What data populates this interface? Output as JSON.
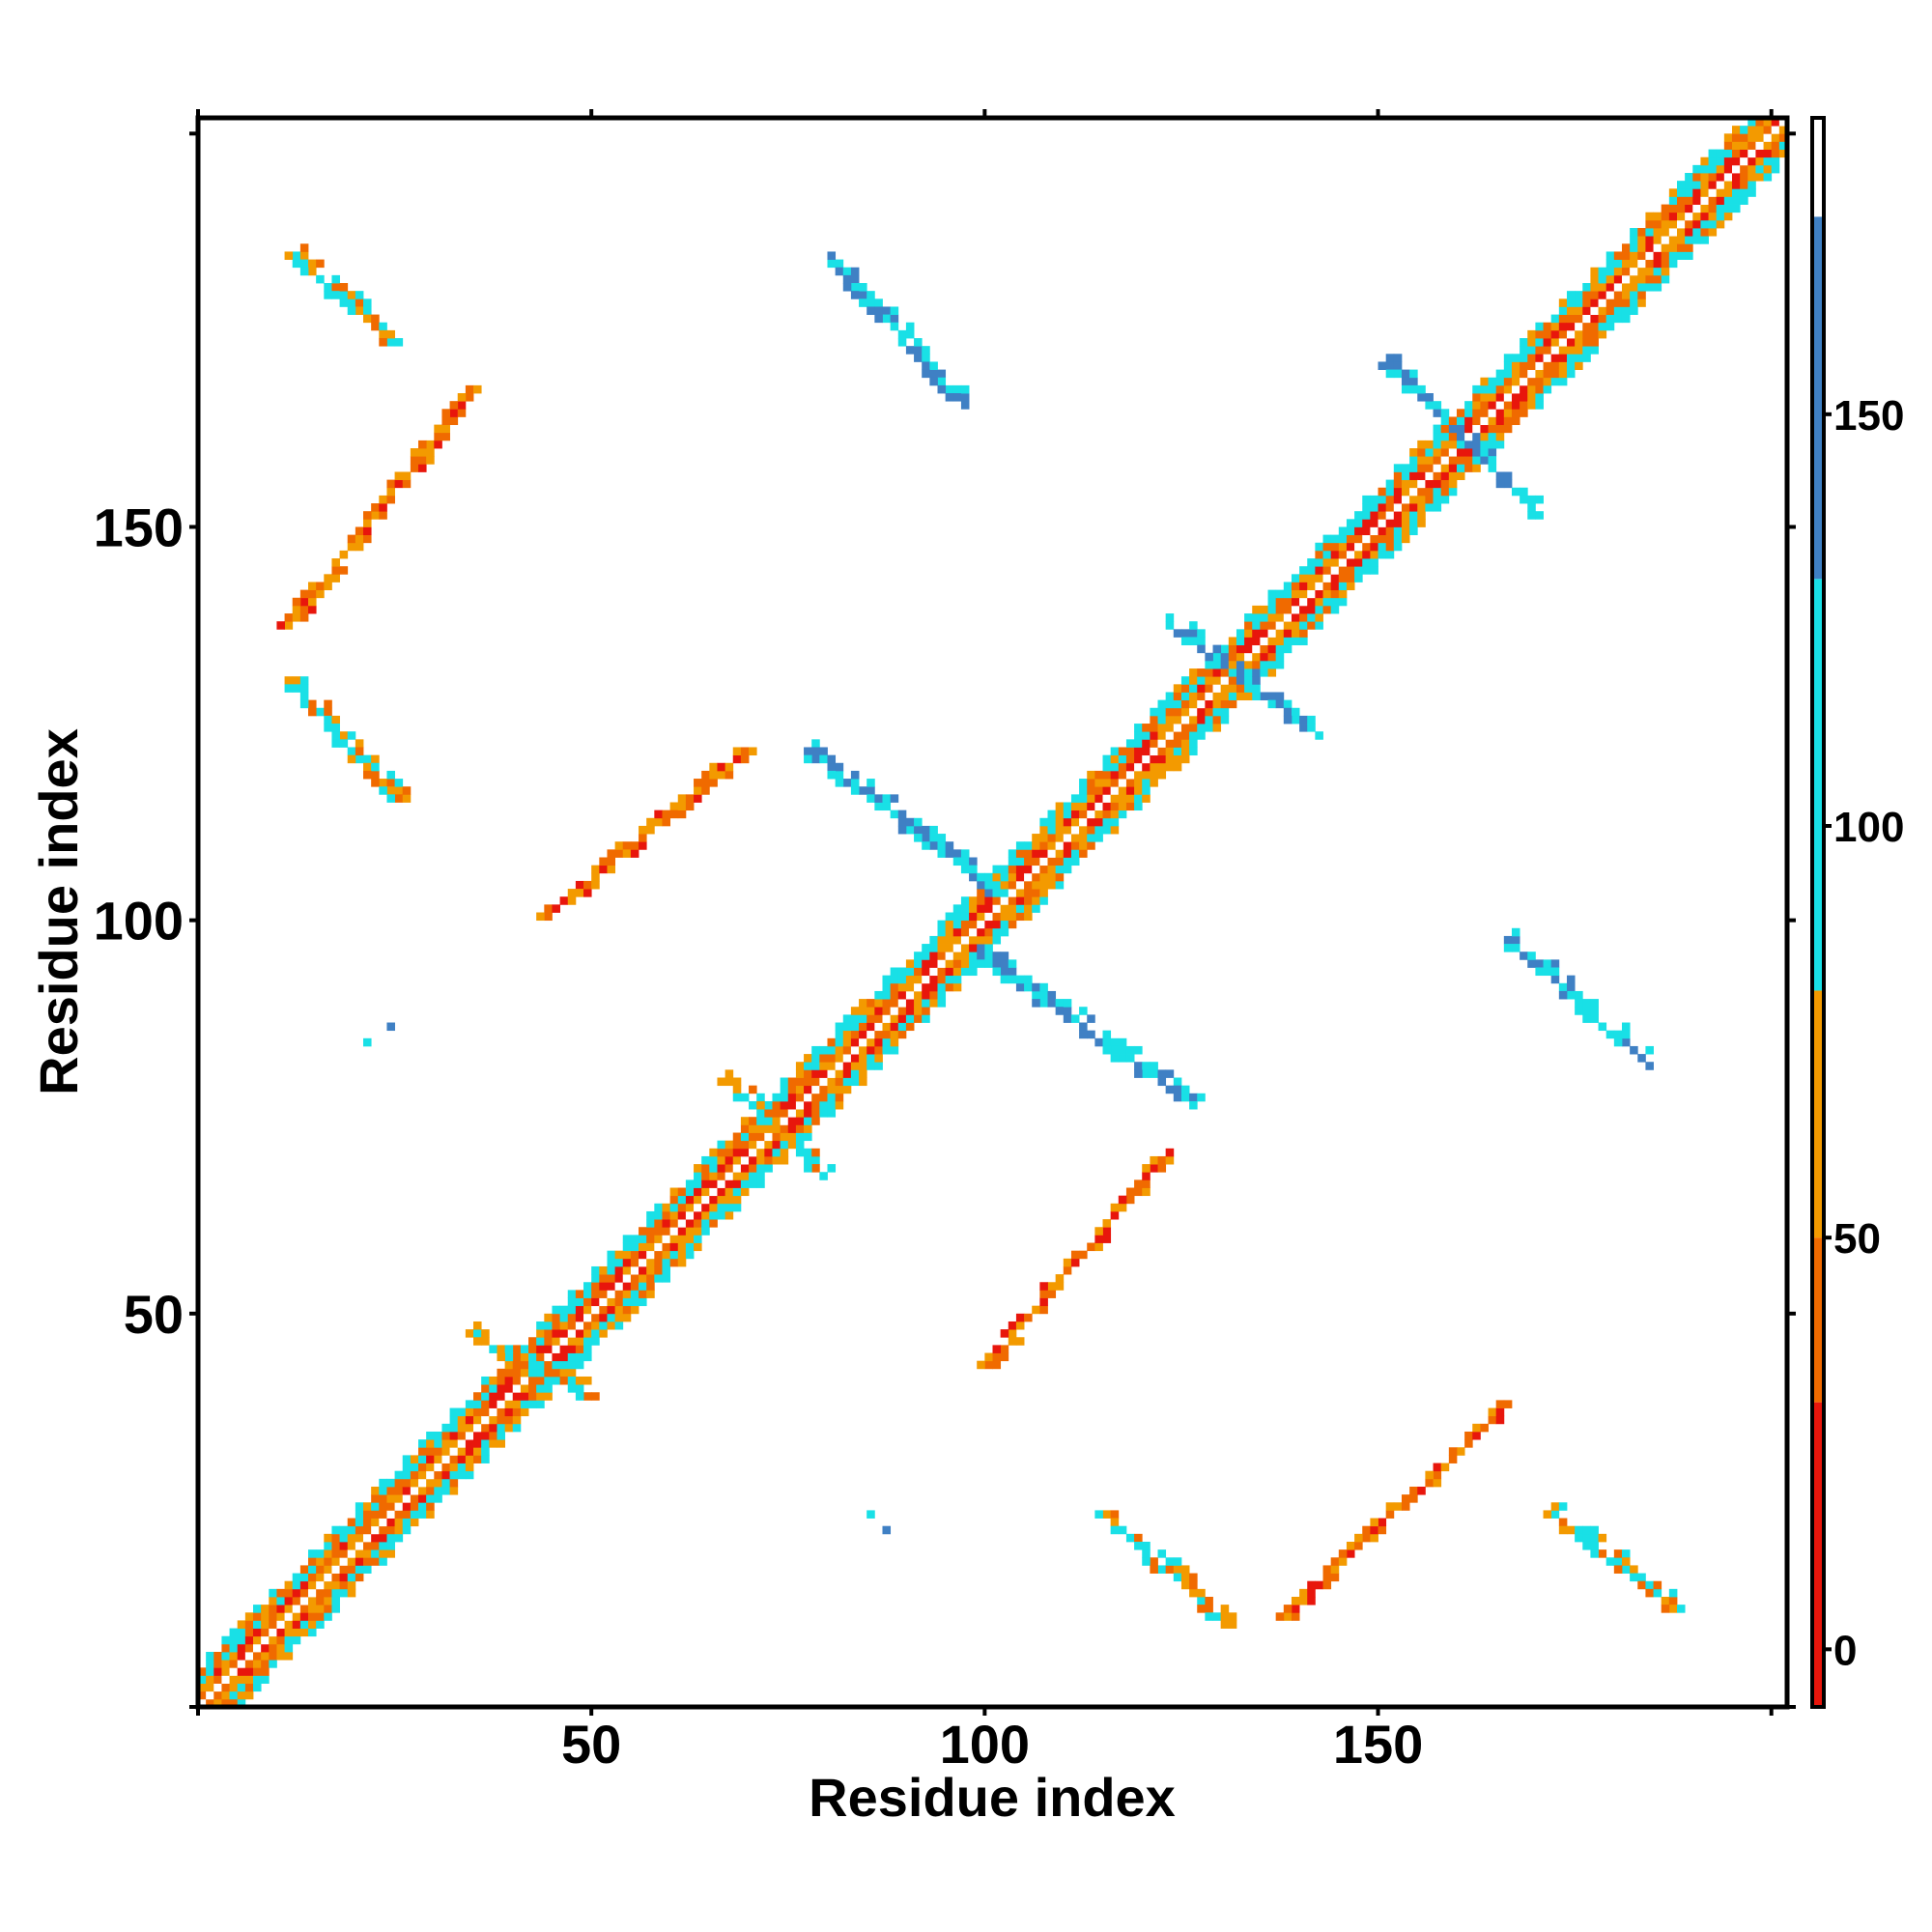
{
  "chart_data": {
    "type": "heatmap",
    "title": "",
    "xlabel": "Residue index",
    "ylabel": "Residue index",
    "xlim": [
      0,
      202
    ],
    "ylim": [
      0,
      202
    ],
    "x_ticks": [
      50,
      100,
      150
    ],
    "y_ticks": [
      50,
      100,
      150
    ],
    "colorbar": {
      "range": [
        -7,
        186
      ],
      "ticks": [
        0,
        50,
        100,
        150
      ],
      "bands": [
        {
          "from": -7,
          "to": 30,
          "color": "#e8160c"
        },
        {
          "from": 30,
          "to": 50,
          "color": "#f06a00"
        },
        {
          "from": 50,
          "to": 80,
          "color": "#f39a00"
        },
        {
          "from": 80,
          "to": 130,
          "color": "#19e0e6"
        },
        {
          "from": 130,
          "to": 174,
          "color": "#3f80c4"
        },
        {
          "from": 174,
          "to": 186,
          "color": "#ffffff"
        }
      ]
    },
    "grid": false,
    "legend": "colorbar-right",
    "diagonal": {
      "from": 1,
      "to": 202,
      "band_half_width": 5
    },
    "contact_segments": [
      {
        "from": [
          13,
          185
        ],
        "to": [
          25,
          174
        ],
        "level": 90
      },
      {
        "from": [
          12,
          138
        ],
        "to": [
          35,
          167
        ],
        "level": 50
      },
      {
        "from": [
          12,
          131
        ],
        "to": [
          26,
          116
        ],
        "level": 90
      },
      {
        "from": [
          45,
          101
        ],
        "to": [
          70,
          122
        ],
        "level": 50
      },
      {
        "from": [
          78,
          122
        ],
        "to": [
          102,
          104
        ],
        "level": 140
      },
      {
        "from": [
          81,
          184
        ],
        "to": [
          98,
          166
        ],
        "level": 140
      },
      {
        "from": [
          100,
          96
        ],
        "to": [
          127,
          77
        ],
        "level": 140
      },
      {
        "from": [
          101,
          44
        ],
        "to": [
          123,
          70
        ],
        "level": 50
      },
      {
        "from": [
          116,
          25
        ],
        "to": [
          131,
          11
        ],
        "level": 90
      },
      {
        "from": [
          139,
          12
        ],
        "to": [
          167,
          39
        ],
        "level": 50
      },
      {
        "from": [
          167,
          98
        ],
        "to": [
          185,
          82
        ],
        "level": 140
      },
      {
        "from": [
          173,
          25
        ],
        "to": [
          188,
          13
        ],
        "level": 90
      },
      {
        "from": [
          35,
          48
        ],
        "to": [
          50,
          40
        ],
        "level": 90
      },
      {
        "from": [
          68,
          80
        ],
        "to": [
          80,
          68
        ],
        "level": 90
      },
      {
        "from": [
          124,
          138
        ],
        "to": [
          143,
          124
        ],
        "level": 140
      },
      {
        "from": [
          152,
          171
        ],
        "to": [
          171,
          152
        ],
        "level": 140
      }
    ],
    "isolated_points": [
      {
        "x": 22,
        "y": 85,
        "level": 90
      },
      {
        "x": 25,
        "y": 87,
        "level": 140
      },
      {
        "x": 86,
        "y": 25,
        "level": 90
      },
      {
        "x": 88,
        "y": 23,
        "level": 140
      }
    ]
  }
}
